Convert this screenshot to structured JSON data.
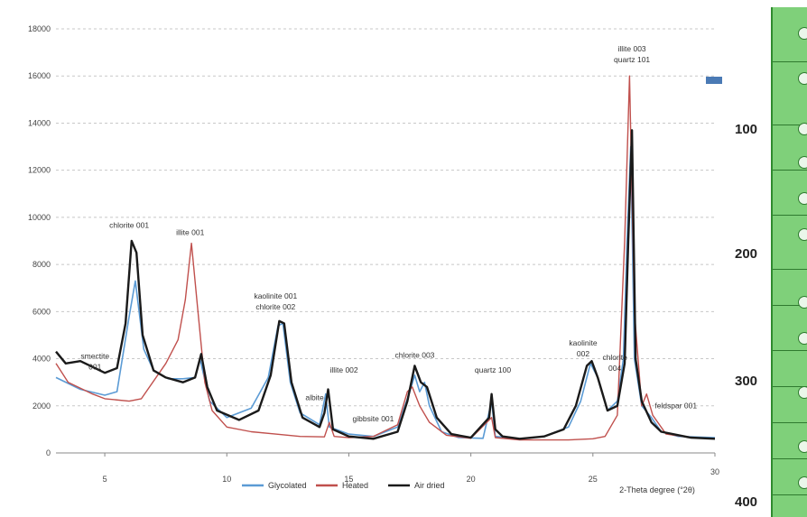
{
  "chart_data": {
    "type": "line",
    "xlabel": "2-Theta degree (°2θ)",
    "ylabel": "",
    "xlim": [
      3,
      30
    ],
    "ylim": [
      0,
      18000
    ],
    "x_ticks": [
      5,
      10,
      15,
      20,
      25,
      30
    ],
    "y_ticks": [
      0,
      2000,
      4000,
      6000,
      8000,
      10000,
      12000,
      14000,
      16000,
      18000
    ],
    "grid": true,
    "legend_position": "bottom",
    "series": [
      {
        "name": "Glycolated",
        "color": "#5b9bd5",
        "points": [
          [
            3,
            3200
          ],
          [
            4,
            2700
          ],
          [
            5,
            2450
          ],
          [
            5.5,
            2600
          ],
          [
            6.0,
            5800
          ],
          [
            6.25,
            7300
          ],
          [
            6.6,
            4400
          ],
          [
            7.0,
            3500
          ],
          [
            7.6,
            3150
          ],
          [
            8.2,
            3150
          ],
          [
            8.7,
            3200
          ],
          [
            8.9,
            4000
          ],
          [
            9.3,
            2200
          ],
          [
            10,
            1500
          ],
          [
            11,
            1900
          ],
          [
            11.7,
            3200
          ],
          [
            12.1,
            5400
          ],
          [
            12.3,
            5500
          ],
          [
            12.6,
            3000
          ],
          [
            13,
            1700
          ],
          [
            13.8,
            1200
          ],
          [
            14.05,
            2500
          ],
          [
            14.2,
            1100
          ],
          [
            15,
            800
          ],
          [
            16,
            700
          ],
          [
            17,
            1100
          ],
          [
            17.5,
            2600
          ],
          [
            17.7,
            3300
          ],
          [
            17.9,
            2600
          ],
          [
            18.1,
            3000
          ],
          [
            18.3,
            2000
          ],
          [
            18.8,
            900
          ],
          [
            19.5,
            650
          ],
          [
            20.5,
            620
          ],
          [
            20.85,
            2200
          ],
          [
            21.0,
            700
          ],
          [
            22,
            600
          ],
          [
            23,
            700
          ],
          [
            24,
            1100
          ],
          [
            24.5,
            2200
          ],
          [
            24.9,
            3800
          ],
          [
            25.2,
            3200
          ],
          [
            25.6,
            1800
          ],
          [
            26.0,
            2200
          ],
          [
            26.25,
            4000
          ],
          [
            26.4,
            9000
          ],
          [
            26.55,
            13000
          ],
          [
            26.7,
            4000
          ],
          [
            27.0,
            2000
          ],
          [
            27.4,
            1500
          ],
          [
            27.8,
            900
          ],
          [
            28.5,
            700
          ],
          [
            30,
            650
          ]
        ]
      },
      {
        "name": "Heated",
        "color": "#c0504d",
        "points": [
          [
            3,
            3800
          ],
          [
            3.5,
            3000
          ],
          [
            4.5,
            2500
          ],
          [
            5,
            2300
          ],
          [
            6,
            2200
          ],
          [
            6.5,
            2300
          ],
          [
            7.5,
            3800
          ],
          [
            8.0,
            4800
          ],
          [
            8.3,
            6500
          ],
          [
            8.55,
            8900
          ],
          [
            8.8,
            6200
          ],
          [
            9.1,
            3000
          ],
          [
            9.4,
            1800
          ],
          [
            10,
            1100
          ],
          [
            11,
            900
          ],
          [
            12,
            800
          ],
          [
            13,
            700
          ],
          [
            14,
            680
          ],
          [
            14.2,
            1300
          ],
          [
            14.4,
            700
          ],
          [
            15,
            650
          ],
          [
            16,
            700
          ],
          [
            17,
            1200
          ],
          [
            17.4,
            2600
          ],
          [
            17.6,
            2800
          ],
          [
            17.9,
            2000
          ],
          [
            18.3,
            1300
          ],
          [
            19,
            750
          ],
          [
            20,
            620
          ],
          [
            20.85,
            1500
          ],
          [
            21.0,
            650
          ],
          [
            22,
            550
          ],
          [
            24,
            550
          ],
          [
            25,
            600
          ],
          [
            25.5,
            700
          ],
          [
            26,
            1600
          ],
          [
            26.3,
            9000
          ],
          [
            26.5,
            16000
          ],
          [
            26.7,
            6000
          ],
          [
            27.0,
            2000
          ],
          [
            27.2,
            2500
          ],
          [
            27.45,
            1600
          ],
          [
            28,
            800
          ],
          [
            29,
            650
          ],
          [
            30,
            600
          ]
        ]
      },
      {
        "name": "Air dried",
        "color": "#1a1a1a",
        "points": [
          [
            3,
            4300
          ],
          [
            3.4,
            3800
          ],
          [
            4,
            3900
          ],
          [
            5,
            3400
          ],
          [
            5.5,
            3600
          ],
          [
            5.85,
            5500
          ],
          [
            6.1,
            9000
          ],
          [
            6.3,
            8500
          ],
          [
            6.55,
            5000
          ],
          [
            7.0,
            3500
          ],
          [
            7.5,
            3200
          ],
          [
            8.2,
            3000
          ],
          [
            8.7,
            3200
          ],
          [
            8.95,
            4200
          ],
          [
            9.2,
            2800
          ],
          [
            9.6,
            1800
          ],
          [
            10.5,
            1400
          ],
          [
            11.3,
            1800
          ],
          [
            11.8,
            3300
          ],
          [
            12.15,
            5600
          ],
          [
            12.35,
            5500
          ],
          [
            12.65,
            3000
          ],
          [
            13.1,
            1500
          ],
          [
            13.8,
            1100
          ],
          [
            14.0,
            1700
          ],
          [
            14.15,
            2700
          ],
          [
            14.35,
            1000
          ],
          [
            15,
            700
          ],
          [
            16,
            600
          ],
          [
            17,
            900
          ],
          [
            17.4,
            2200
          ],
          [
            17.7,
            3700
          ],
          [
            17.95,
            3000
          ],
          [
            18.2,
            2800
          ],
          [
            18.6,
            1500
          ],
          [
            19.2,
            800
          ],
          [
            20,
            650
          ],
          [
            20.75,
            1500
          ],
          [
            20.85,
            2500
          ],
          [
            21.0,
            1000
          ],
          [
            21.3,
            700
          ],
          [
            22,
            600
          ],
          [
            23,
            700
          ],
          [
            23.8,
            1000
          ],
          [
            24.3,
            2000
          ],
          [
            24.75,
            3700
          ],
          [
            24.95,
            3900
          ],
          [
            25.2,
            3200
          ],
          [
            25.6,
            1800
          ],
          [
            26.0,
            2000
          ],
          [
            26.3,
            3800
          ],
          [
            26.45,
            9000
          ],
          [
            26.6,
            13700
          ],
          [
            26.75,
            4000
          ],
          [
            27.0,
            2200
          ],
          [
            27.4,
            1300
          ],
          [
            27.8,
            900
          ],
          [
            29,
            650
          ],
          [
            30,
            600
          ]
        ]
      }
    ],
    "annotations": [
      {
        "lines": [
          "smectite",
          "001"
        ],
        "x": 4.6,
        "y": 4000
      },
      {
        "lines": [
          "chlorite 001"
        ],
        "x": 6.0,
        "y": 9550
      },
      {
        "lines": [
          "illite 001"
        ],
        "x": 8.5,
        "y": 9250
      },
      {
        "lines": [
          "kaolinite 001",
          "chlorite 002"
        ],
        "x": 12.0,
        "y": 6550
      },
      {
        "lines": [
          "albite"
        ],
        "x": 13.6,
        "y": 2250
      },
      {
        "lines": [
          "illite 002"
        ],
        "x": 14.8,
        "y": 3400
      },
      {
        "lines": [
          "gibbsite 001"
        ],
        "x": 16.0,
        "y": 1350
      },
      {
        "lines": [
          "chlorite 003"
        ],
        "x": 17.7,
        "y": 4050
      },
      {
        "lines": [
          "quartz 100"
        ],
        "x": 20.9,
        "y": 3400
      },
      {
        "lines": [
          "kaolinite",
          "002"
        ],
        "x": 24.6,
        "y": 4550
      },
      {
        "lines": [
          "chlorite",
          "004"
        ],
        "x": 25.9,
        "y": 3950
      },
      {
        "lines": [
          "illite 003",
          "quartz 101"
        ],
        "x": 26.6,
        "y": 17050
      },
      {
        "lines": [
          "feldspar 001"
        ],
        "x": 28.4,
        "y": 1900
      }
    ]
  },
  "depth_scale": {
    "labels": [
      "100",
      "200",
      "300",
      "400"
    ]
  }
}
